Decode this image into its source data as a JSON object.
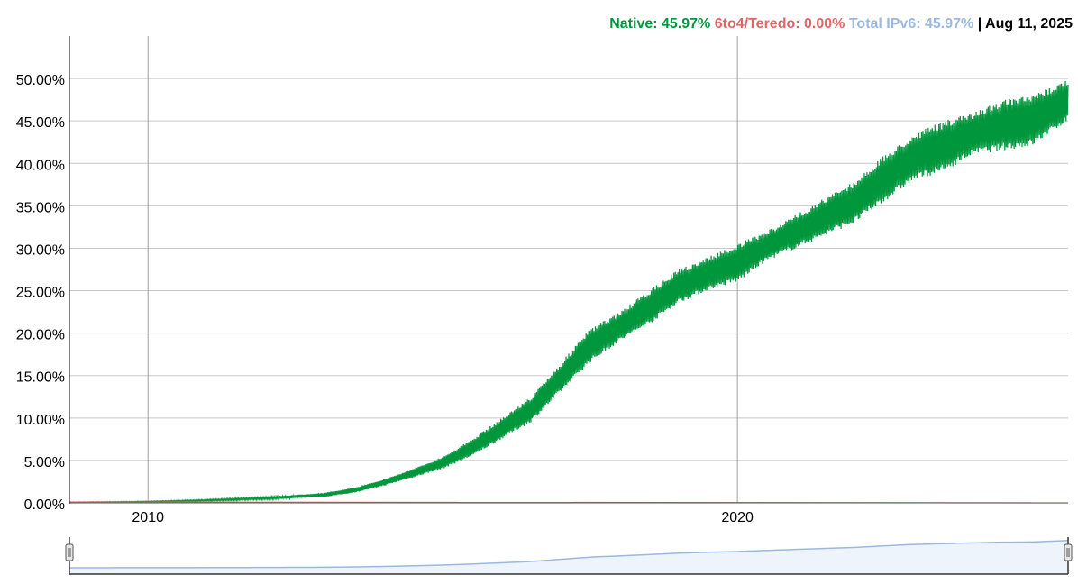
{
  "legend": {
    "native_label": "Native: 45.97%",
    "teredo_label": "6to4/Teredo: 0.00%",
    "total_label": "Total IPv6: 45.97%",
    "date_label": "| Aug 11, 2025"
  },
  "colors": {
    "native": "#00963C",
    "teredo": "#E06666",
    "total": "#9BB8E0",
    "grid": "#C8C8C8",
    "axis": "#000000",
    "range_fill": "#EEF4FC"
  },
  "chart_data": {
    "type": "area",
    "title": "",
    "xlabel": "",
    "ylabel": "",
    "x_range": [
      "2008-09-01",
      "2025-08-11"
    ],
    "ylim": [
      0,
      0.55
    ],
    "y_ticks": [
      "0.00%",
      "5.00%",
      "10.00%",
      "15.00%",
      "20.00%",
      "25.00%",
      "30.00%",
      "35.00%",
      "40.00%",
      "45.00%",
      "50.00%"
    ],
    "x_ticks": [
      "2010",
      "2020"
    ],
    "grid": true,
    "legend_position": "top-right",
    "series": [
      {
        "name": "Native",
        "x": [
          "2008-09-01",
          "2010-01-01",
          "2011-01-01",
          "2012-01-01",
          "2013-01-01",
          "2013-07-01",
          "2014-01-01",
          "2014-07-01",
          "2015-01-01",
          "2015-07-01",
          "2016-01-01",
          "2016-07-01",
          "2017-01-01",
          "2017-07-01",
          "2018-01-01",
          "2018-07-01",
          "2019-01-01",
          "2019-07-01",
          "2020-01-01",
          "2020-07-01",
          "2021-01-01",
          "2021-07-01",
          "2022-01-01",
          "2022-07-01",
          "2023-01-01",
          "2023-07-01",
          "2024-01-01",
          "2024-07-01",
          "2025-01-01",
          "2025-08-11"
        ],
        "low": [
          0.0,
          0.001,
          0.002,
          0.004,
          0.007,
          0.012,
          0.02,
          0.03,
          0.04,
          0.055,
          0.075,
          0.095,
          0.13,
          0.165,
          0.19,
          0.21,
          0.235,
          0.25,
          0.26,
          0.285,
          0.3,
          0.315,
          0.33,
          0.355,
          0.38,
          0.39,
          0.41,
          0.415,
          0.42,
          0.45
        ],
        "high": [
          0.001,
          0.002,
          0.004,
          0.007,
          0.012,
          0.018,
          0.028,
          0.04,
          0.055,
          0.075,
          0.1,
          0.125,
          0.165,
          0.205,
          0.225,
          0.25,
          0.275,
          0.29,
          0.305,
          0.32,
          0.34,
          0.36,
          0.38,
          0.41,
          0.435,
          0.45,
          0.46,
          0.475,
          0.48,
          0.5
        ],
        "latest": 0.4597
      },
      {
        "name": "6to4/Teredo",
        "x": [
          "2008-09-01",
          "2025-08-11"
        ],
        "values": [
          0.001,
          0.0
        ],
        "latest": 0.0
      },
      {
        "name": "Total IPv6",
        "latest": 0.4597
      }
    ]
  }
}
